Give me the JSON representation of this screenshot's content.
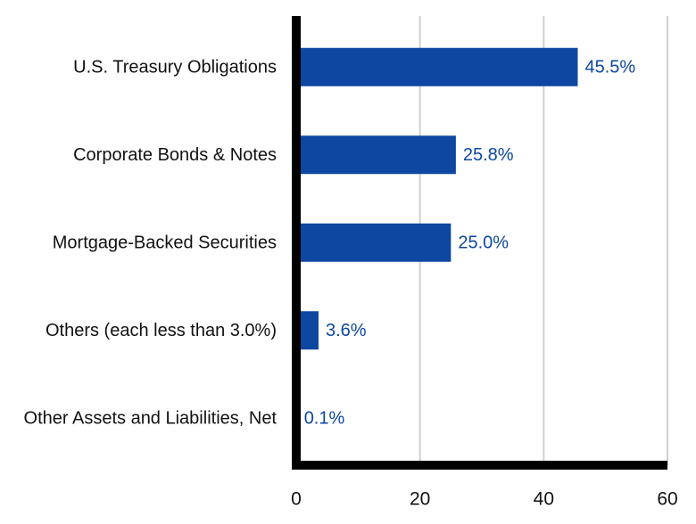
{
  "chart_data": {
    "type": "bar",
    "orientation": "horizontal",
    "categories": [
      "U.S. Treasury Obligations",
      "Corporate Bonds & Notes",
      "Mortgage-Backed Securities",
      "Others (each less than 3.0%)",
      "Other Assets and Liabilities, Net"
    ],
    "values": [
      45.5,
      25.8,
      25.0,
      3.6,
      0.1
    ],
    "value_labels": [
      "45.5%",
      "25.8%",
      "25.0%",
      "3.6%",
      "0.1%"
    ],
    "title": "",
    "xlabel": "",
    "ylabel": "",
    "xlim": [
      0,
      60
    ],
    "xticks": [
      0,
      20,
      40,
      60
    ],
    "xtick_labels": [
      "0",
      "20",
      "40",
      "60"
    ],
    "grid": "vertical",
    "legend": "none"
  },
  "colors": {
    "bar": "#0d47a1",
    "value_label": "#0d47a1",
    "axis": "#000000",
    "grid": "#d0d0d0"
  }
}
